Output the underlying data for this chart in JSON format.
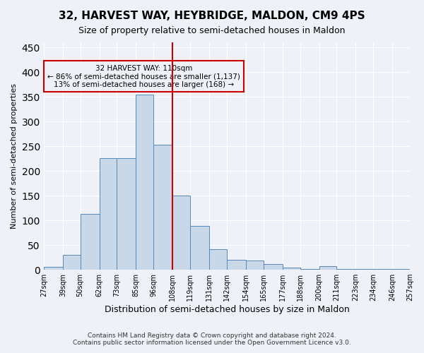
{
  "title": "32, HARVEST WAY, HEYBRIDGE, MALDON, CM9 4PS",
  "subtitle": "Size of property relative to semi-detached houses in Maldon",
  "xlabel": "Distribution of semi-detached houses by size in Maldon",
  "ylabel": "Number of semi-detached properties",
  "footer_line1": "Contains HM Land Registry data © Crown copyright and database right 2024.",
  "footer_line2": "Contains public sector information licensed under the Open Government Licence v3.0.",
  "annotation_title": "32 HARVEST WAY: 110sqm",
  "annotation_line1": "← 86% of semi-detached houses are smaller (1,137)",
  "annotation_line2": "13% of semi-detached houses are larger (168) →",
  "property_size": 110,
  "bin_labels": [
    "27sqm",
    "39sqm",
    "50sqm",
    "62sqm",
    "73sqm",
    "85sqm",
    "96sqm",
    "108sqm",
    "119sqm",
    "131sqm",
    "142sqm",
    "154sqm",
    "165sqm",
    "177sqm",
    "188sqm",
    "200sqm",
    "211sqm",
    "223sqm",
    "234sqm",
    "246sqm",
    "257sqm"
  ],
  "bin_edges": [
    27,
    39,
    50,
    62,
    73,
    85,
    96,
    108,
    119,
    131,
    142,
    154,
    165,
    177,
    188,
    200,
    211,
    223,
    234,
    246,
    257
  ],
  "bar_heights": [
    6,
    30,
    113,
    226,
    226,
    355,
    253,
    150,
    88,
    42,
    20,
    18,
    12,
    5,
    2,
    7,
    2,
    1,
    1,
    1
  ],
  "bar_color": "#c8d8e8",
  "bar_edge_color": "#5588bb",
  "vline_color": "#cc0000",
  "vline_x": 108,
  "bg_color": "#eef2f8",
  "grid_color": "#ffffff",
  "annotation_box_color": "#cc0000",
  "ylim": [
    0,
    460
  ],
  "yticks": [
    0,
    50,
    100,
    150,
    200,
    250,
    300,
    350,
    400,
    450
  ]
}
